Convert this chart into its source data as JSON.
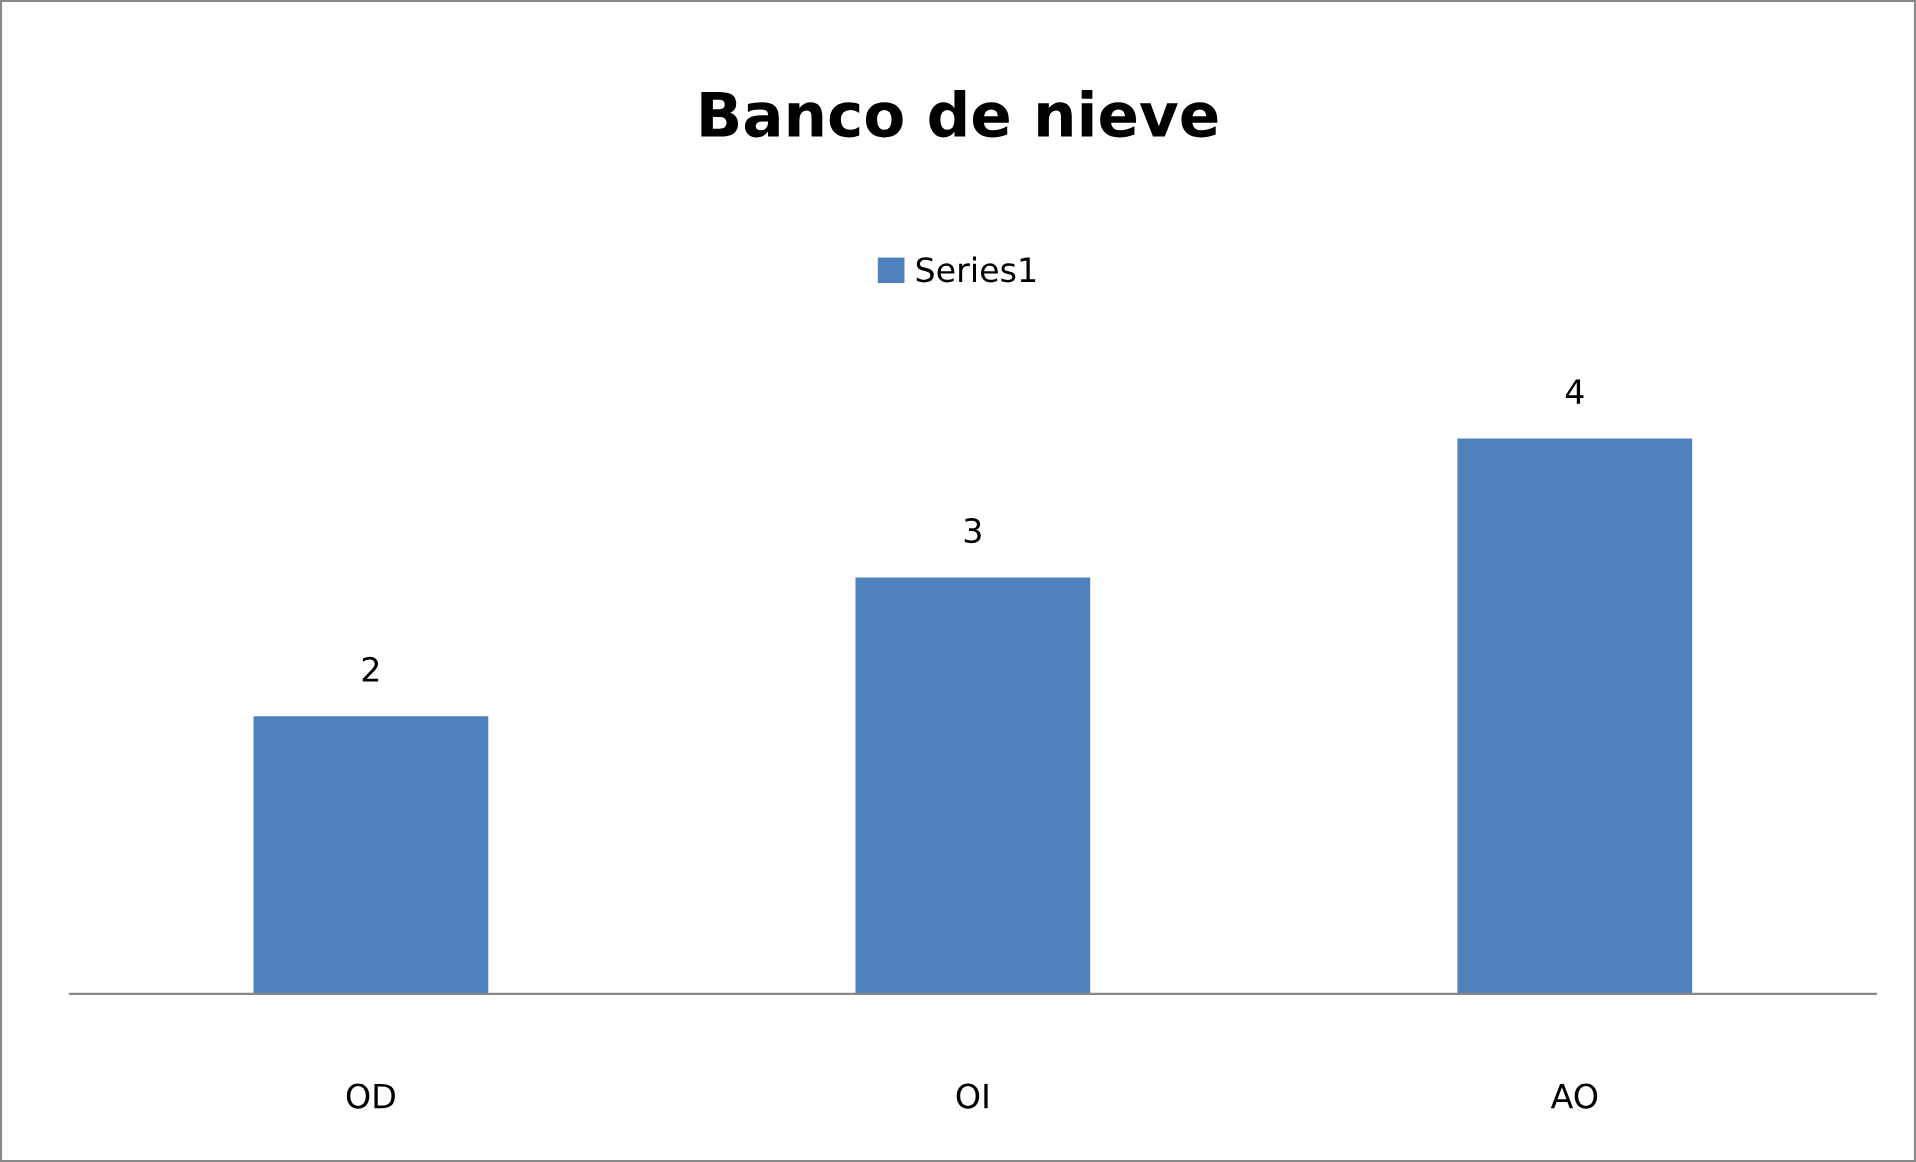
{
  "chart_data": {
    "type": "bar",
    "title": "Banco de nieve",
    "categories": [
      "OD",
      "OI",
      "AO"
    ],
    "series": [
      {
        "name": "Series1",
        "color": "#4f81bd",
        "values": [
          2,
          3,
          4
        ]
      }
    ],
    "data_labels": true,
    "legend": "top"
  }
}
